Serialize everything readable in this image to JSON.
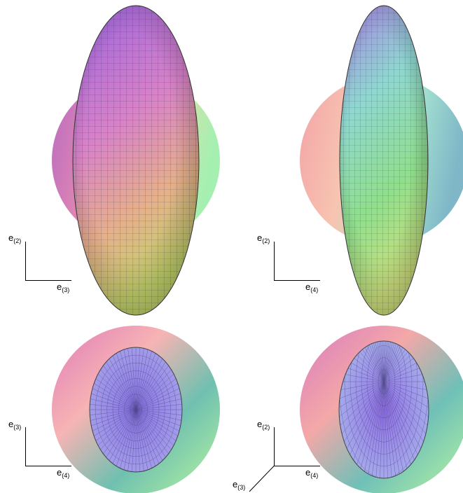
{
  "panels": [
    {
      "id": "top-left",
      "axes": {
        "vertical": {
          "base": "e",
          "sub": "(2)"
        },
        "horizontal": {
          "base": "e",
          "sub": "(3)"
        }
      },
      "sphere_colors": [
        "#b86bc2",
        "#e58ab0",
        "#f2d7a8",
        "#a5f0b0"
      ],
      "ellipsoid_colors": [
        "#9a63e0",
        "#d882c8",
        "#e6b08a",
        "#c2d26a"
      ]
    },
    {
      "id": "top-right",
      "axes": {
        "vertical": {
          "base": "e",
          "sub": "(2)"
        },
        "horizontal": {
          "base": "e",
          "sub": "(4)"
        }
      },
      "sphere_colors": [
        "#f3a3a8",
        "#f7c4b0",
        "#a6e3d0",
        "#7fb7c8"
      ],
      "ellipsoid_colors": [
        "#a87ee6",
        "#8ed8d0",
        "#8fe08a",
        "#cde07a"
      ]
    },
    {
      "id": "bottom-left",
      "axes": {
        "vertical": {
          "base": "e",
          "sub": "(3)"
        },
        "horizontal": {
          "base": "e",
          "sub": "(4)"
        }
      },
      "sphere_colors": [
        "#e07ab8",
        "#f7b4b4",
        "#6fc0b0",
        "#b8f5a0"
      ],
      "ellipsoid_colors": [
        "#8a74e6",
        "#a7a3ea"
      ]
    },
    {
      "id": "bottom-right",
      "axes": {
        "vertical": {
          "base": "e",
          "sub": "(2)"
        },
        "horizontal": {
          "base": "e",
          "sub": "(4)"
        },
        "diagonal": {
          "base": "e",
          "sub": "(3)"
        }
      },
      "sphere_colors": [
        "#d87ac0",
        "#f4a8a8",
        "#6fc0b8",
        "#b8f5a0"
      ],
      "ellipsoid_colors": [
        "#9070e6",
        "#a9b4ec"
      ]
    }
  ]
}
